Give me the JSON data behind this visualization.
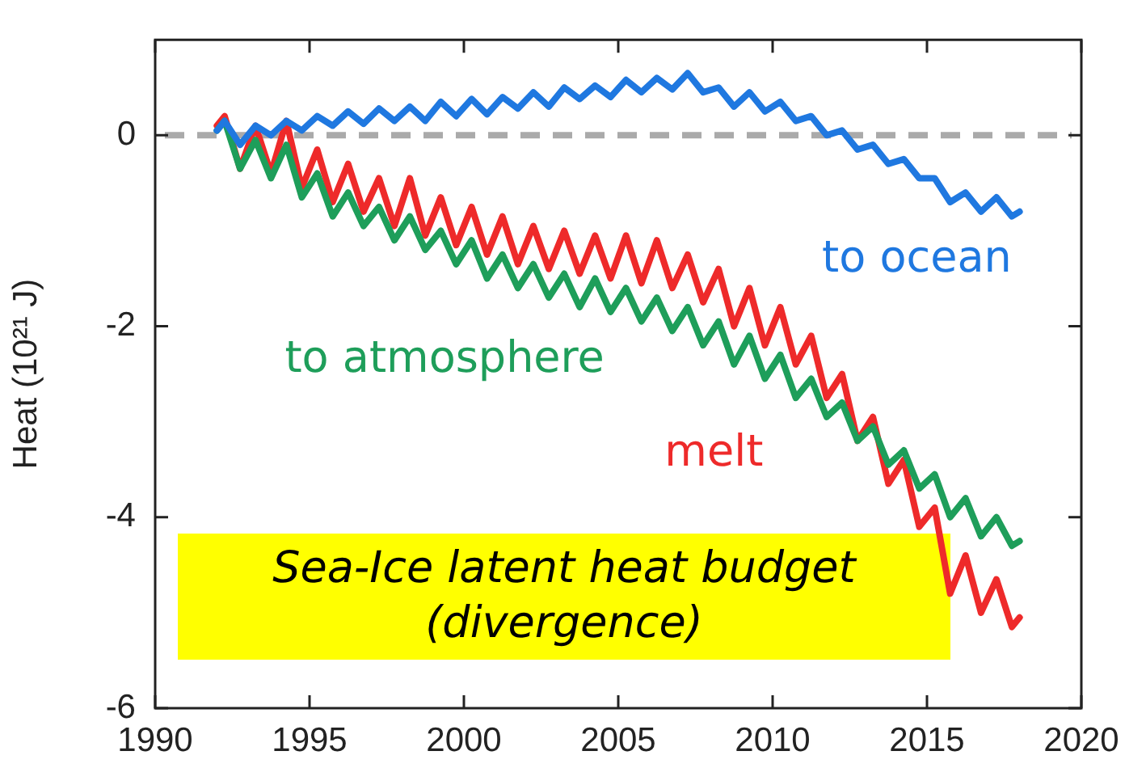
{
  "chart_data": {
    "type": "line",
    "ylabel": "Heat (10²¹ J)",
    "x": [
      1992,
      1992.25,
      1992.75,
      1993.25,
      1993.75,
      1994.25,
      1994.75,
      1995.25,
      1995.75,
      1996.25,
      1996.75,
      1997.25,
      1997.75,
      1998.25,
      1998.75,
      1999.25,
      1999.75,
      2000.25,
      2000.75,
      2001.25,
      2001.75,
      2002.25,
      2002.75,
      2003.25,
      2003.75,
      2004.25,
      2004.75,
      2005.25,
      2005.75,
      2006.25,
      2006.75,
      2007.25,
      2007.75,
      2008.25,
      2008.75,
      2009.25,
      2009.75,
      2010.25,
      2010.75,
      2011.25,
      2011.75,
      2012.25,
      2012.75,
      2013.25,
      2013.75,
      2014.25,
      2014.75,
      2015.25,
      2015.75,
      2016.25,
      2016.75,
      2017.25,
      2017.75,
      2018
    ],
    "series": [
      {
        "name": "to ocean",
        "color": "#1f78e0",
        "values": [
          0.05,
          0.15,
          -0.1,
          0.1,
          0.0,
          0.15,
          0.05,
          0.2,
          0.1,
          0.25,
          0.12,
          0.28,
          0.15,
          0.3,
          0.15,
          0.35,
          0.2,
          0.38,
          0.22,
          0.4,
          0.28,
          0.45,
          0.3,
          0.5,
          0.38,
          0.52,
          0.4,
          0.58,
          0.45,
          0.6,
          0.48,
          0.65,
          0.45,
          0.5,
          0.3,
          0.45,
          0.25,
          0.35,
          0.15,
          0.2,
          0.0,
          0.05,
          -0.15,
          -0.1,
          -0.3,
          -0.25,
          -0.45,
          -0.45,
          -0.7,
          -0.6,
          -0.8,
          -0.65,
          -0.85,
          -0.8
        ]
      },
      {
        "name": "to atmosphere",
        "color": "#1e9e5a",
        "values": [
          0.05,
          0.15,
          -0.35,
          -0.05,
          -0.45,
          -0.1,
          -0.65,
          -0.4,
          -0.85,
          -0.6,
          -0.95,
          -0.75,
          -1.1,
          -0.85,
          -1.2,
          -1.0,
          -1.35,
          -1.1,
          -1.5,
          -1.25,
          -1.6,
          -1.35,
          -1.7,
          -1.45,
          -1.8,
          -1.5,
          -1.85,
          -1.6,
          -1.95,
          -1.7,
          -2.05,
          -1.8,
          -2.2,
          -1.95,
          -2.4,
          -2.1,
          -2.55,
          -2.3,
          -2.75,
          -2.55,
          -2.95,
          -2.8,
          -3.2,
          -3.05,
          -3.45,
          -3.3,
          -3.7,
          -3.55,
          -4.0,
          -3.8,
          -4.2,
          -4.0,
          -4.3,
          -4.25
        ]
      },
      {
        "name": "melt",
        "color": "#ee2a2a",
        "values": [
          0.1,
          0.2,
          -0.35,
          0.1,
          -0.4,
          0.15,
          -0.55,
          -0.15,
          -0.7,
          -0.3,
          -0.8,
          -0.45,
          -0.95,
          -0.45,
          -1.05,
          -0.65,
          -1.15,
          -0.75,
          -1.25,
          -0.85,
          -1.35,
          -0.95,
          -1.4,
          -1.0,
          -1.45,
          -1.05,
          -1.5,
          -1.05,
          -1.55,
          -1.1,
          -1.6,
          -1.25,
          -1.75,
          -1.4,
          -2.0,
          -1.6,
          -2.2,
          -1.8,
          -2.4,
          -2.1,
          -2.75,
          -2.5,
          -3.2,
          -2.95,
          -3.65,
          -3.4,
          -4.1,
          -3.9,
          -4.8,
          -4.4,
          -5.0,
          -4.65,
          -5.15,
          -5.05
        ]
      }
    ],
    "xlim": [
      1990,
      2020
    ],
    "xticks": [
      1990,
      1995,
      2000,
      2005,
      2010,
      2015,
      2020
    ],
    "ylim": [
      -6,
      1
    ],
    "yticks": [
      -6,
      -4,
      -2,
      0
    ],
    "ref_lines": [
      {
        "axis": "y",
        "value": 0,
        "color": "#aaaaaa",
        "line_style": "dashed"
      }
    ],
    "annotations": [
      "Sea-Ice latent heat budget (divergence)"
    ],
    "grid": false,
    "legend": false
  }
}
